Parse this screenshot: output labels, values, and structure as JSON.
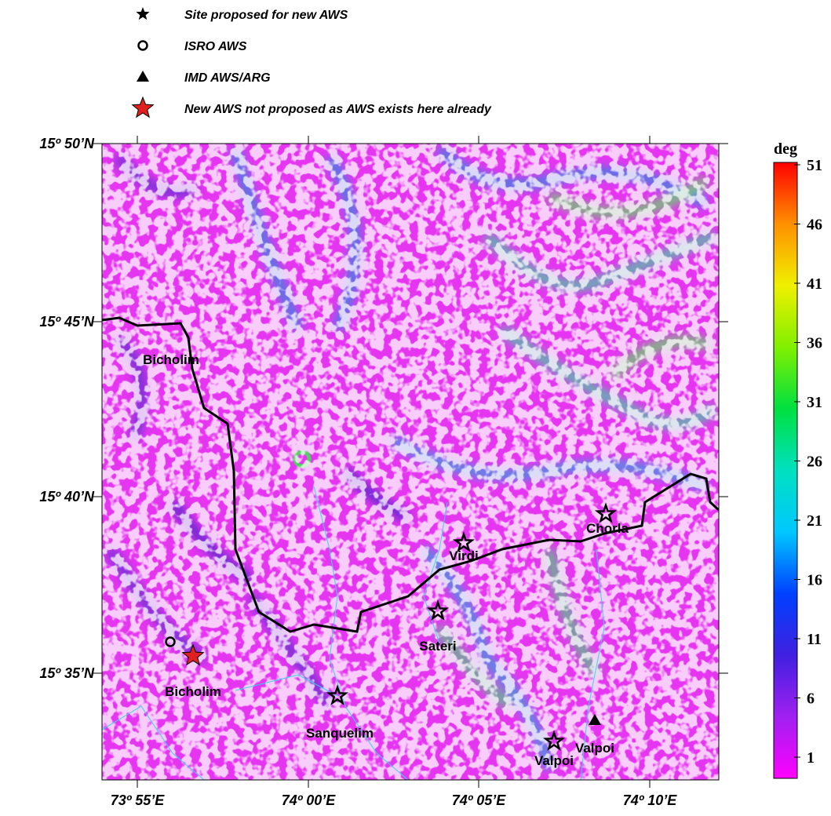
{
  "legend": [
    "Site proposed for new AWS",
    "ISRO AWS",
    "IMD AWS/ARG",
    "New AWS not proposed as AWS exists here already"
  ],
  "lat_labels": [
    "15º 50’N",
    "15º 45’N",
    "15º 40’N",
    "15º 35’N"
  ],
  "lon_labels": [
    "73º 55’E",
    "74º 00’E",
    "74º 05’E",
    "74º 10’E"
  ],
  "colorbar": {
    "title": "deg",
    "ticks": [
      1,
      6,
      11,
      16,
      21,
      26,
      31,
      36,
      41,
      46,
      51
    ]
  },
  "places": [
    "Bicholim",
    "Bicholim",
    "Sanquelim",
    "Sateri",
    "Virdi",
    "Chorla",
    "Valpoi",
    "Valpoi"
  ]
}
